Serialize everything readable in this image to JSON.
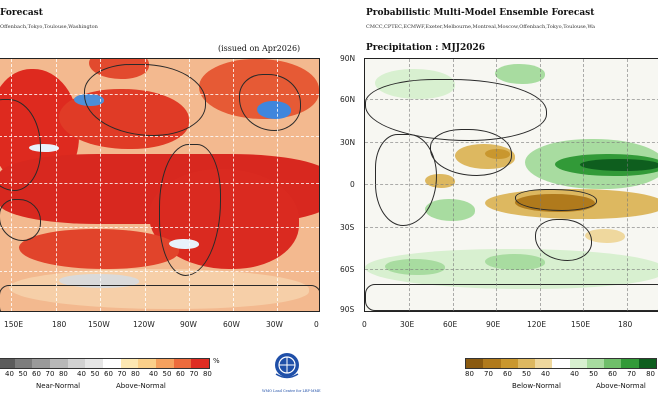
{
  "left": {
    "title": "Forecast",
    "subtitle": "Offenbach,Tokyo,Toulouse,Washington",
    "issued": "(issued on Apr2026)",
    "lon_ticks": [
      "150E",
      "180",
      "150W",
      "120W",
      "90W",
      "60W",
      "30W",
      "0"
    ],
    "legend_values": [
      "0",
      "40",
      "50",
      "60",
      "70",
      "80",
      "",
      "40",
      "50",
      "60",
      "70",
      "80",
      "",
      "40",
      "50",
      "60",
      "70",
      "80"
    ],
    "legend_unit": "%",
    "legend_cats": [
      "Near-Normal",
      "Above-Normal"
    ],
    "legend_colors": [
      "#5c5c5c",
      "#7d7d7d",
      "#9a9a9a",
      "#b8b8b8",
      "#d2d2d2",
      "#e6e6e6",
      "#ffffff",
      "#fde8b3",
      "#fbd08a",
      "#f5a15e",
      "#ec6b3c",
      "#df2d22"
    ]
  },
  "right": {
    "title": "Probabilistic Multi-Model Ensemble Forecast",
    "subtitle": "CMCC,CPTEC,ECMWF,Exeter,Melbourne,Montreal,Moscow,Offenbach,Tokyo,Toulouse,Wa",
    "heading": "Precipitation : MJJ2026",
    "lat_ticks": [
      "90N",
      "60N",
      "30N",
      "0",
      "30S",
      "60S",
      "90S"
    ],
    "lon_ticks": [
      "0",
      "30E",
      "60E",
      "90E",
      "120E",
      "150E",
      "180"
    ],
    "legend_values": [
      "80",
      "70",
      "60",
      "50",
      "40",
      "",
      "40",
      "50",
      "60",
      "70",
      "80"
    ],
    "legend_cats": [
      "Below-Normal",
      "Above-Normal"
    ],
    "legend_colors": [
      "#8a5a10",
      "#b07a1c",
      "#c9972e",
      "#ddb860",
      "#efd89e",
      "#ffffff",
      "#d8f0d0",
      "#a8dca0",
      "#6fbf6a",
      "#329a38",
      "#0e5e1e"
    ]
  },
  "logo_caption": "WMO Lead Centre for LRF-MME",
  "colors": {
    "above_warm": "#de2a1f",
    "below_dry": "#c98a2a",
    "above_wet": "#1e7a2e",
    "cool_blue": "#5aa0e0"
  }
}
